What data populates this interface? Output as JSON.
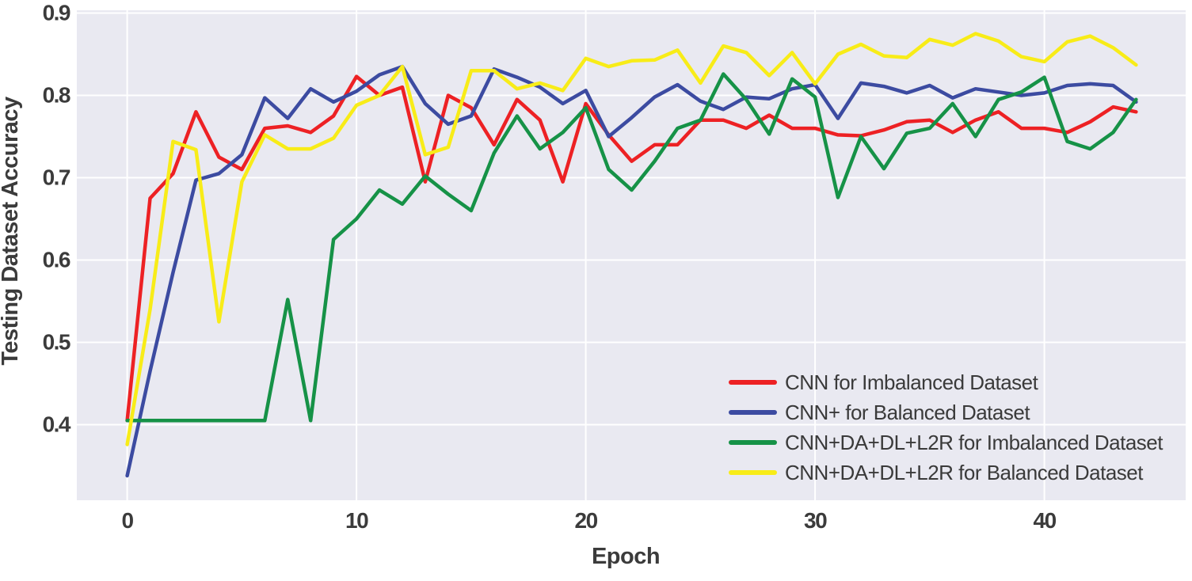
{
  "chart_data": {
    "type": "line",
    "title": "",
    "xlabel": "Epoch",
    "ylabel": "Testing Dataset Accuracy",
    "x": [
      0,
      1,
      2,
      3,
      4,
      5,
      6,
      7,
      8,
      9,
      10,
      11,
      12,
      13,
      14,
      15,
      16,
      17,
      18,
      19,
      20,
      21,
      22,
      23,
      24,
      25,
      26,
      27,
      28,
      29,
      30,
      31,
      32,
      33,
      34,
      35,
      36,
      37,
      38,
      39,
      40,
      41,
      42,
      43,
      44
    ],
    "xticks": [
      0,
      10,
      20,
      30,
      40
    ],
    "yticks": [
      0.4,
      0.5,
      0.6,
      0.7,
      0.8,
      0.9
    ],
    "xlim": [
      -2.2,
      46.2
    ],
    "ylim": [
      0.305,
      0.905
    ],
    "grid": true,
    "legend_position": "lower right",
    "plot_bg_color": "#e9e9f1",
    "grid_color": "#ffffff",
    "text_color": "#3b3b3b",
    "series": [
      {
        "name": "CNN for Imbalanced Dataset",
        "color": "#ed2124",
        "values": [
          0.405,
          0.675,
          0.705,
          0.78,
          0.725,
          0.71,
          0.76,
          0.763,
          0.755,
          0.775,
          0.823,
          0.8,
          0.81,
          0.695,
          0.8,
          0.785,
          0.74,
          0.795,
          0.77,
          0.695,
          0.79,
          0.752,
          0.72,
          0.74,
          0.74,
          0.77,
          0.77,
          0.76,
          0.776,
          0.76,
          0.76,
          0.752,
          0.751,
          0.758,
          0.768,
          0.77,
          0.755,
          0.77,
          0.78,
          0.76,
          0.76,
          0.755,
          0.768,
          0.786,
          0.78
        ]
      },
      {
        "name": "CNN+ for Balanced Dataset",
        "color": "#3c4ba1",
        "values": [
          0.338,
          0.465,
          0.585,
          0.697,
          0.705,
          0.728,
          0.797,
          0.772,
          0.808,
          0.792,
          0.805,
          0.825,
          0.835,
          0.79,
          0.765,
          0.775,
          0.832,
          0.822,
          0.81,
          0.79,
          0.806,
          0.75,
          0.773,
          0.798,
          0.813,
          0.793,
          0.783,
          0.798,
          0.796,
          0.808,
          0.813,
          0.772,
          0.815,
          0.811,
          0.803,
          0.812,
          0.797,
          0.808,
          0.804,
          0.8,
          0.803,
          0.812,
          0.814,
          0.812,
          0.792
        ]
      },
      {
        "name": "CNN+DA+DL+L2R for Imbalanced Dataset",
        "color": "#169247",
        "values": [
          0.405,
          0.405,
          0.405,
          0.405,
          0.405,
          0.405,
          0.405,
          0.552,
          0.405,
          0.625,
          0.65,
          0.685,
          0.668,
          0.702,
          0.68,
          0.66,
          0.73,
          0.775,
          0.735,
          0.755,
          0.785,
          0.71,
          0.685,
          0.72,
          0.76,
          0.77,
          0.826,
          0.795,
          0.753,
          0.82,
          0.798,
          0.676,
          0.75,
          0.711,
          0.754,
          0.76,
          0.79,
          0.75,
          0.795,
          0.804,
          0.822,
          0.744,
          0.735,
          0.755,
          0.795
        ]
      },
      {
        "name": "CNN+DA+DL+L2R for Balanced Dataset",
        "color": "#f8ec18",
        "values": [
          0.376,
          0.54,
          0.744,
          0.734,
          0.525,
          0.695,
          0.752,
          0.735,
          0.735,
          0.748,
          0.788,
          0.8,
          0.835,
          0.728,
          0.737,
          0.83,
          0.83,
          0.808,
          0.815,
          0.806,
          0.845,
          0.835,
          0.842,
          0.843,
          0.855,
          0.815,
          0.86,
          0.852,
          0.824,
          0.852,
          0.814,
          0.85,
          0.862,
          0.848,
          0.846,
          0.868,
          0.861,
          0.875,
          0.866,
          0.847,
          0.841,
          0.865,
          0.872,
          0.858,
          0.837
        ]
      }
    ]
  }
}
